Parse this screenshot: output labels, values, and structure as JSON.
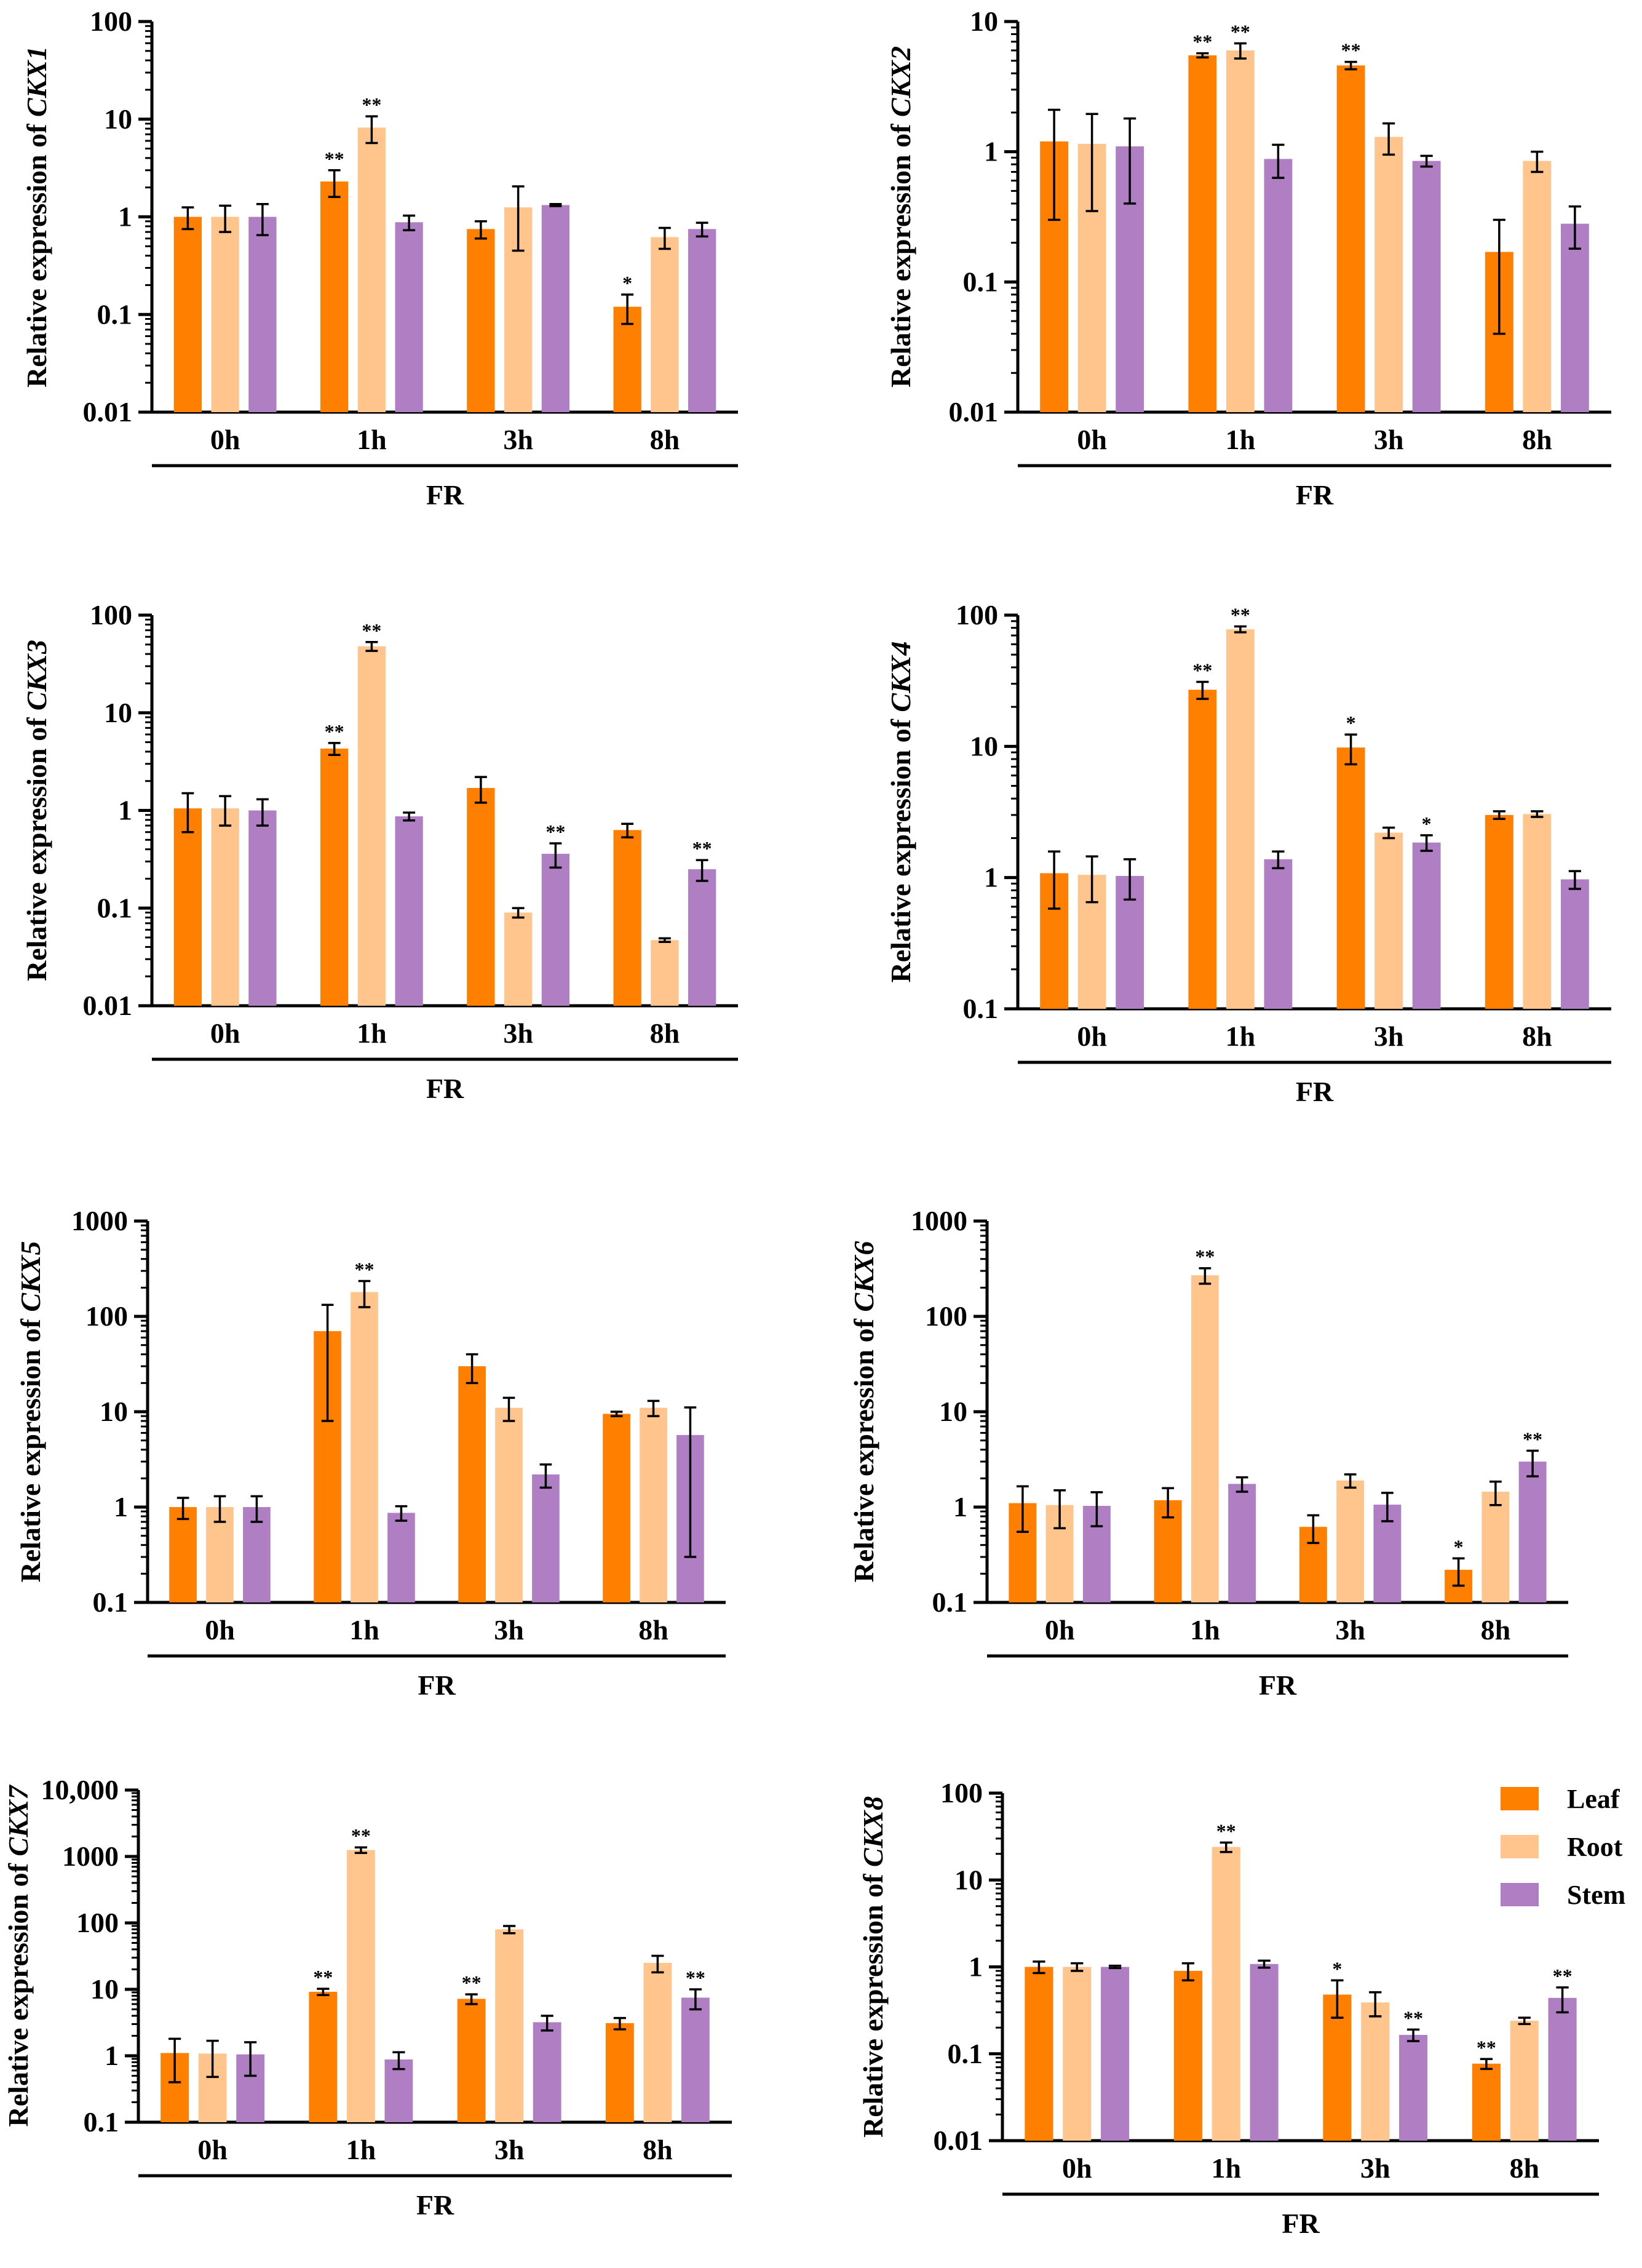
{
  "colors": {
    "leaf": "#FF7F00",
    "root": "#FFC58C",
    "stem": "#B07FC3"
  },
  "legend": [
    {
      "key": "leaf",
      "label": "Leaf"
    },
    {
      "key": "root",
      "label": "Root"
    },
    {
      "key": "stem",
      "label": "Stem"
    }
  ],
  "chart_data": [
    {
      "type": "bar",
      "gene": "CKX1",
      "ylabel_prefix": "Relative expression of ",
      "xlabel": "FR",
      "categories": [
        "0h",
        "1h",
        "3h",
        "8h"
      ],
      "yscale": "log",
      "ylim": [
        0.01,
        100
      ],
      "yticks": [
        "0.01",
        "0.1",
        "1",
        "10",
        "100"
      ],
      "series": [
        {
          "name": "Leaf",
          "values": [
            1,
            2.3,
            0.75,
            0.12
          ],
          "err": [
            0.25,
            0.7,
            0.15,
            0.04
          ],
          "sig": [
            "",
            "**",
            "",
            "*"
          ]
        },
        {
          "name": "Root",
          "values": [
            1,
            8.2,
            1.25,
            0.62
          ],
          "err": [
            0.3,
            2.5,
            0.8,
            0.15
          ],
          "sig": [
            "",
            "**",
            "",
            ""
          ]
        },
        {
          "name": "Stem",
          "values": [
            1,
            0.88,
            1.32,
            0.75
          ],
          "err": [
            0.35,
            0.15,
            0.03,
            0.12
          ],
          "sig": [
            "",
            "",
            "",
            ""
          ]
        }
      ]
    },
    {
      "type": "bar",
      "gene": "CKX2",
      "ylabel_prefix": "Relative expression of ",
      "xlabel": "FR",
      "categories": [
        "0h",
        "1h",
        "3h",
        "8h"
      ],
      "yscale": "log",
      "ylim": [
        0.01,
        10
      ],
      "yticks": [
        "0.01",
        "0.1",
        "1",
        "10"
      ],
      "series": [
        {
          "name": "Leaf",
          "values": [
            1.2,
            5.5,
            4.6,
            0.17
          ],
          "err": [
            0.9,
            0.2,
            0.3,
            0.13
          ],
          "sig": [
            "",
            "**",
            "**",
            ""
          ]
        },
        {
          "name": "Root",
          "values": [
            1.15,
            6.0,
            1.3,
            0.85
          ],
          "err": [
            0.8,
            0.8,
            0.35,
            0.15
          ],
          "sig": [
            "",
            "**",
            "",
            ""
          ]
        },
        {
          "name": "Stem",
          "values": [
            1.1,
            0.88,
            0.85,
            0.28
          ],
          "err": [
            0.7,
            0.25,
            0.08,
            0.1
          ],
          "sig": [
            "",
            "",
            "",
            ""
          ]
        }
      ]
    },
    {
      "type": "bar",
      "gene": "CKX3",
      "ylabel_prefix": "Relative expression of ",
      "xlabel": "FR",
      "categories": [
        "0h",
        "1h",
        "3h",
        "8h"
      ],
      "yscale": "log",
      "ylim": [
        0.01,
        100
      ],
      "yticks": [
        "0.01",
        "0.1",
        "1",
        "10",
        "100"
      ],
      "series": [
        {
          "name": "Leaf",
          "values": [
            1.05,
            4.3,
            1.7,
            0.63
          ],
          "err": [
            0.45,
            0.6,
            0.5,
            0.1
          ],
          "sig": [
            "",
            "**",
            "",
            ""
          ]
        },
        {
          "name": "Root",
          "values": [
            1.05,
            48,
            0.09,
            0.047
          ],
          "err": [
            0.35,
            5,
            0.01,
            0.002
          ],
          "sig": [
            "",
            "**",
            "",
            ""
          ]
        },
        {
          "name": "Stem",
          "values": [
            1.0,
            0.87,
            0.36,
            0.25
          ],
          "err": [
            0.3,
            0.08,
            0.1,
            0.06
          ],
          "sig": [
            "",
            "",
            "**",
            "**"
          ]
        }
      ]
    },
    {
      "type": "bar",
      "gene": "CKX4",
      "ylabel_prefix": "Relative expression of ",
      "xlabel": "FR",
      "categories": [
        "0h",
        "1h",
        "3h",
        "8h"
      ],
      "yscale": "log",
      "ylim": [
        0.1,
        100
      ],
      "yticks": [
        "0.1",
        "1",
        "10",
        "100"
      ],
      "series": [
        {
          "name": "Leaf",
          "values": [
            1.08,
            27,
            9.8,
            3.0
          ],
          "err": [
            0.5,
            4,
            2.5,
            0.2
          ],
          "sig": [
            "",
            "**",
            "*",
            ""
          ]
        },
        {
          "name": "Root",
          "values": [
            1.05,
            78,
            2.2,
            3.05
          ],
          "err": [
            0.4,
            4,
            0.2,
            0.15
          ],
          "sig": [
            "",
            "**",
            "",
            ""
          ]
        },
        {
          "name": "Stem",
          "values": [
            1.03,
            1.38,
            1.85,
            0.97
          ],
          "err": [
            0.35,
            0.2,
            0.25,
            0.15
          ],
          "sig": [
            "",
            "",
            "*",
            ""
          ]
        }
      ]
    },
    {
      "type": "bar",
      "gene": "CKX5",
      "ylabel_prefix": "Relative expression of ",
      "xlabel": "FR",
      "categories": [
        "0h",
        "1h",
        "3h",
        "8h"
      ],
      "yscale": "log",
      "ylim": [
        0.1,
        1000
      ],
      "yticks": [
        "0.1",
        "1",
        "10",
        "100",
        "1000"
      ],
      "series": [
        {
          "name": "Leaf",
          "values": [
            1.0,
            70,
            30,
            9.5
          ],
          "err": [
            0.25,
            62,
            10,
            0.5
          ],
          "sig": [
            "",
            "",
            "",
            ""
          ]
        },
        {
          "name": "Root",
          "values": [
            1.0,
            180,
            11,
            11
          ],
          "err": [
            0.3,
            55,
            3,
            2
          ],
          "sig": [
            "",
            "**",
            "",
            ""
          ]
        },
        {
          "name": "Stem",
          "values": [
            1.0,
            0.87,
            2.2,
            5.7
          ],
          "err": [
            0.3,
            0.15,
            0.6,
            5.4
          ],
          "sig": [
            "",
            "",
            "",
            ""
          ]
        }
      ]
    },
    {
      "type": "bar",
      "gene": "CKX6",
      "ylabel_prefix": "Relative expression of ",
      "xlabel": "FR",
      "categories": [
        "0h",
        "1h",
        "3h",
        "8h"
      ],
      "yscale": "log",
      "ylim": [
        0.1,
        1000
      ],
      "yticks": [
        "0.1",
        "1",
        "10",
        "100",
        "1000"
      ],
      "series": [
        {
          "name": "Leaf",
          "values": [
            1.1,
            1.18,
            0.62,
            0.22
          ],
          "err": [
            0.55,
            0.4,
            0.2,
            0.07
          ],
          "sig": [
            "",
            "",
            "",
            "*"
          ]
        },
        {
          "name": "Root",
          "values": [
            1.05,
            270,
            1.9,
            1.45
          ],
          "err": [
            0.45,
            50,
            0.3,
            0.4
          ],
          "sig": [
            "",
            "**",
            "",
            ""
          ]
        },
        {
          "name": "Stem",
          "values": [
            1.03,
            1.75,
            1.06,
            3.0
          ],
          "err": [
            0.4,
            0.3,
            0.35,
            0.9
          ],
          "sig": [
            "",
            "",
            "",
            "**"
          ]
        }
      ]
    },
    {
      "type": "bar",
      "gene": "CKX7",
      "ylabel_prefix": "Relative expression of ",
      "xlabel": "FR",
      "categories": [
        "0h",
        "1h",
        "3h",
        "8h"
      ],
      "yscale": "log",
      "ylim": [
        0.1,
        10000
      ],
      "yticks": [
        "0.1",
        "1",
        "10",
        "100",
        "1000",
        "10,000"
      ],
      "series": [
        {
          "name": "Leaf",
          "values": [
            1.1,
            9.2,
            7.2,
            3.1
          ],
          "err": [
            0.7,
            1.0,
            1.2,
            0.6
          ],
          "sig": [
            "",
            "**",
            "**",
            ""
          ]
        },
        {
          "name": "Root",
          "values": [
            1.08,
            1250,
            80,
            25
          ],
          "err": [
            0.6,
            120,
            10,
            7
          ],
          "sig": [
            "",
            "**",
            "",
            ""
          ]
        },
        {
          "name": "Stem",
          "values": [
            1.05,
            0.88,
            3.2,
            7.5
          ],
          "err": [
            0.55,
            0.25,
            0.8,
            2.5
          ],
          "sig": [
            "",
            "",
            "",
            "**"
          ]
        }
      ]
    },
    {
      "type": "bar",
      "gene": "CKX8",
      "ylabel_prefix": "Relative expression of ",
      "xlabel": "FR",
      "categories": [
        "0h",
        "1h",
        "3h",
        "8h"
      ],
      "yscale": "log",
      "ylim": [
        0.01,
        100
      ],
      "yticks": [
        "0.01",
        "0.1",
        "1",
        "10",
        "100"
      ],
      "series": [
        {
          "name": "Leaf",
          "values": [
            1.0,
            0.9,
            0.48,
            0.077
          ],
          "err": [
            0.15,
            0.2,
            0.22,
            0.01
          ],
          "sig": [
            "",
            "",
            "*",
            "**"
          ]
        },
        {
          "name": "Root",
          "values": [
            1.0,
            24,
            0.39,
            0.24
          ],
          "err": [
            0.1,
            3,
            0.12,
            0.02
          ],
          "sig": [
            "",
            "**",
            "",
            ""
          ]
        },
        {
          "name": "Stem",
          "values": [
            1.0,
            1.08,
            0.165,
            0.44
          ],
          "err": [
            0.03,
            0.1,
            0.025,
            0.14
          ],
          "sig": [
            "",
            "",
            "**",
            "**"
          ]
        }
      ]
    }
  ]
}
